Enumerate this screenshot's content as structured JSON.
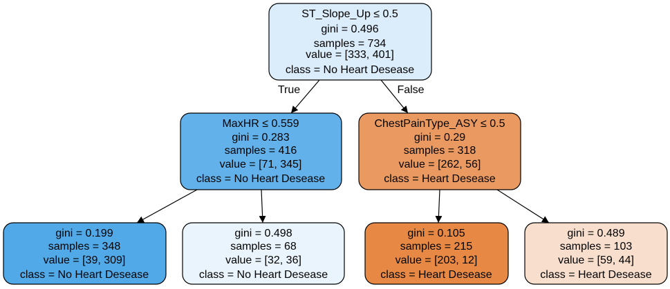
{
  "tree": {
    "root": {
      "lines": [
        "ST_Slope_Up ≤ 0.5",
        "gini = 0.496",
        "samples = 734",
        "value = [333, 401]",
        "class = No Heart Desease"
      ],
      "fill": "#dbecfa"
    },
    "left": {
      "lines": [
        "MaxHR ≤ 0.559",
        "gini = 0.283",
        "samples = 416",
        "value = [71, 345]",
        "class = No Heart Desease"
      ],
      "fill": "#62b1ea"
    },
    "right": {
      "lines": [
        "ChestPainType_ASY ≤ 0.5",
        "gini = 0.29",
        "samples = 318",
        "value = [262, 56]",
        "class = Heart Desease"
      ],
      "fill": "#ea9a61"
    },
    "leaf_ll": {
      "lines": [
        "gini = 0.199",
        "samples = 348",
        "value = [39, 309]",
        "class = No Heart Desease"
      ],
      "fill": "#52a9e8"
    },
    "leaf_lr": {
      "lines": [
        "gini = 0.498",
        "samples = 68",
        "value = [32, 36]",
        "class = No Heart Desease"
      ],
      "fill": "#e9f4fc"
    },
    "leaf_rl": {
      "lines": [
        "gini = 0.105",
        "samples = 215",
        "value = [203, 12]",
        "class = Heart Desease"
      ],
      "fill": "#e78945"
    },
    "leaf_rr": {
      "lines": [
        "gini = 0.489",
        "samples = 103",
        "value = [59, 44]",
        "class = Heart Desease"
      ],
      "fill": "#f8dfcd"
    }
  },
  "edges": {
    "true_label": "True",
    "false_label": "False"
  }
}
